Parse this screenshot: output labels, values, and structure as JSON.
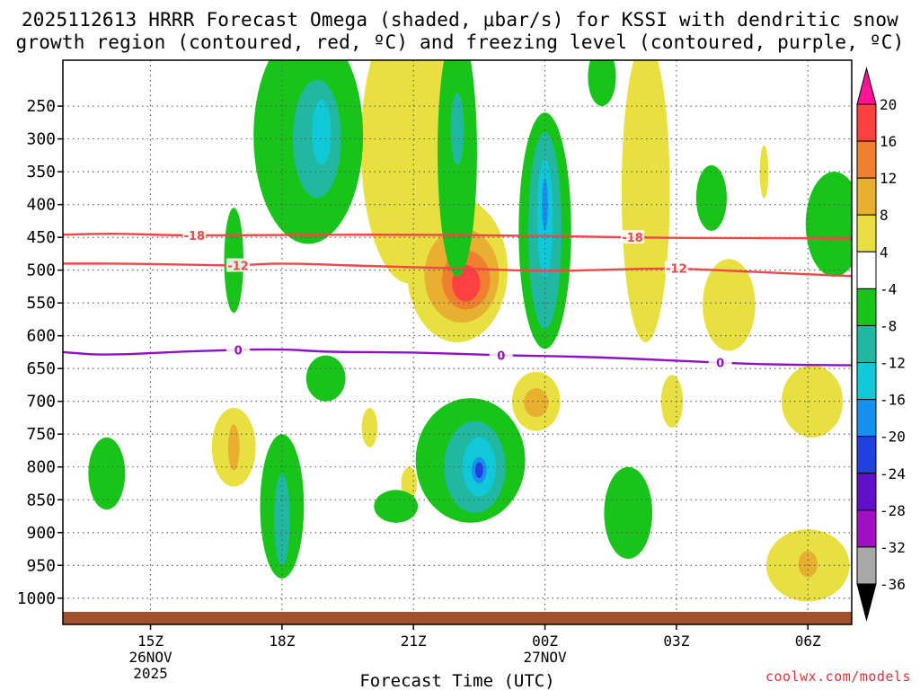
{
  "chart_data": {
    "type": "heatmap",
    "title_line1": "2025112613 HRRR Forecast Omega (shaded, μbar/s) for KSSI with dendritic snow",
    "title_line2": "growth region (contoured, red, ºC) and freezing level (contoured, purple, ºC)",
    "xlabel": "Forecast Time (UTC)",
    "ylabel": "",
    "x_range_hours": [
      13,
      31
    ],
    "y_range_mb": [
      180,
      1040
    ],
    "x_ticks": [
      {
        "hour": 15,
        "label": "15Z",
        "sub1": "26NOV",
        "sub2": "2025"
      },
      {
        "hour": 18,
        "label": "18Z",
        "sub1": "",
        "sub2": ""
      },
      {
        "hour": 21,
        "label": "21Z",
        "sub1": "",
        "sub2": ""
      },
      {
        "hour": 24,
        "label": "00Z",
        "sub1": "27NOV",
        "sub2": ""
      },
      {
        "hour": 27,
        "label": "03Z",
        "sub1": "",
        "sub2": ""
      },
      {
        "hour": 30,
        "label": "06Z",
        "sub1": "",
        "sub2": ""
      }
    ],
    "y_ticks": [
      250,
      300,
      350,
      400,
      450,
      500,
      550,
      600,
      650,
      700,
      750,
      800,
      850,
      900,
      950,
      1000
    ],
    "colorbar": {
      "levels": [
        "20",
        "16",
        "12",
        "8",
        "4",
        "-4",
        "-8",
        "-12",
        "-16",
        "-20",
        "-24",
        "-28",
        "-32",
        "-36"
      ],
      "colors": [
        "#ff1493",
        "#ff4040",
        "#f08030",
        "#e8b030",
        "#e8e040",
        "#ffffff",
        "#19c41a",
        "#20b8a0",
        "#10c8d8",
        "#1890f0",
        "#2040e0",
        "#6010c8",
        "#a010c0",
        "#a8a8a8",
        "#000000"
      ]
    },
    "contours": [
      {
        "name": "dgz-minus18",
        "label": "-18",
        "color": "#f04848",
        "points": [
          [
            13,
            446
          ],
          [
            14.2,
            444
          ],
          [
            15.5,
            447
          ],
          [
            17,
            447
          ],
          [
            19,
            446
          ],
          [
            21,
            446
          ],
          [
            23,
            447
          ],
          [
            25,
            449
          ],
          [
            27,
            451
          ],
          [
            29,
            451
          ],
          [
            31,
            452
          ]
        ]
      },
      {
        "name": "dgz-minus12",
        "label": "-12",
        "color": "#f04848",
        "points": [
          [
            13,
            490
          ],
          [
            14.5,
            490
          ],
          [
            16,
            492
          ],
          [
            17,
            493
          ],
          [
            18,
            489
          ],
          [
            20,
            494
          ],
          [
            22,
            497
          ],
          [
            24,
            502
          ],
          [
            25.5,
            499
          ],
          [
            27,
            497
          ],
          [
            28.5,
            502
          ],
          [
            31,
            509
          ]
        ]
      },
      {
        "name": "freezing-level",
        "label": "0",
        "color": "#9010c8",
        "points": [
          [
            13,
            625
          ],
          [
            14,
            630
          ],
          [
            16,
            623
          ],
          [
            18,
            620
          ],
          [
            19,
            625
          ],
          [
            21,
            625
          ],
          [
            23,
            630
          ],
          [
            25,
            632
          ],
          [
            27,
            638
          ],
          [
            29,
            644
          ],
          [
            31,
            645
          ]
        ]
      }
    ],
    "shaded_regions": [
      {
        "name": "yellow-upper-a",
        "level": "4",
        "hour": 20.9,
        "mb": 310,
        "half_width_hours": 1.1,
        "half_height_mb": 210
      },
      {
        "name": "yellow-upper-b",
        "level": "4",
        "hour": 26.3,
        "mb": 380,
        "half_width_hours": 0.55,
        "half_height_mb": 230
      },
      {
        "name": "yellow-dgz-core",
        "level": "4",
        "hour": 22.0,
        "mb": 500,
        "half_width_hours": 1.15,
        "half_height_mb": 110
      },
      {
        "name": "orange-dgz",
        "level": "8",
        "hour": 22.1,
        "mb": 508,
        "half_width_hours": 0.85,
        "half_height_mb": 72
      },
      {
        "name": "red-dgz",
        "level": "12",
        "hour": 22.2,
        "mb": 515,
        "half_width_hours": 0.55,
        "half_height_mb": 45
      },
      {
        "name": "pink-dgz",
        "level": "16",
        "hour": 22.2,
        "mb": 520,
        "half_width_hours": 0.32,
        "half_height_mb": 28
      },
      {
        "name": "yellow-02z-mid",
        "level": "4",
        "hour": 28.2,
        "mb": 553,
        "half_width_hours": 0.6,
        "half_height_mb": 70
      },
      {
        "name": "yellow-23z-low",
        "level": "4",
        "hour": 23.8,
        "mb": 700,
        "half_width_hours": 0.55,
        "half_height_mb": 45
      },
      {
        "name": "orange-23z-low",
        "level": "8",
        "hour": 23.8,
        "mb": 702,
        "half_width_hours": 0.28,
        "half_height_mb": 22
      },
      {
        "name": "yellow-17z",
        "level": "4",
        "hour": 16.9,
        "mb": 770,
        "half_width_hours": 0.5,
        "half_height_mb": 60
      },
      {
        "name": "orange-17z",
        "level": "8",
        "hour": 16.9,
        "mb": 770,
        "half_width_hours": 0.13,
        "half_height_mb": 35
      },
      {
        "name": "yellow-0530z",
        "level": "4",
        "hour": 30.1,
        "mb": 700,
        "half_width_hours": 0.7,
        "half_height_mb": 55
      },
      {
        "name": "yellow-06z-low",
        "level": "4",
        "hour": 30.0,
        "mb": 950,
        "half_width_hours": 0.95,
        "half_height_mb": 55
      },
      {
        "name": "orange-06z-low",
        "level": "8",
        "hour": 30.0,
        "mb": 948,
        "half_width_hours": 0.22,
        "half_height_mb": 20
      },
      {
        "name": "yellow-0330z",
        "level": "4",
        "hour": 26.9,
        "mb": 700,
        "half_width_hours": 0.25,
        "half_height_mb": 40
      },
      {
        "name": "yellow-20z-spot",
        "level": "4",
        "hour": 20.0,
        "mb": 740,
        "half_width_hours": 0.18,
        "half_height_mb": 30
      },
      {
        "name": "yellow-2130z-spot",
        "level": "4",
        "hour": 20.9,
        "mb": 825,
        "half_width_hours": 0.18,
        "half_height_mb": 25
      },
      {
        "name": "yellow-0430z-spot",
        "level": "4",
        "hour": 29.0,
        "mb": 350,
        "half_width_hours": 0.1,
        "half_height_mb": 40
      },
      {
        "name": "green-1830z-upper",
        "level": "-4",
        "hour": 18.6,
        "mb": 295,
        "half_width_hours": 1.25,
        "half_height_mb": 165
      },
      {
        "name": "teal-1830z-upper",
        "level": "-8",
        "hour": 18.8,
        "mb": 300,
        "half_width_hours": 0.55,
        "half_height_mb": 90
      },
      {
        "name": "cyan-1830z-upper",
        "level": "-12",
        "hour": 18.9,
        "mb": 290,
        "half_width_hours": 0.22,
        "half_height_mb": 50
      },
      {
        "name": "green-2230z-upper",
        "level": "-4",
        "hour": 22.0,
        "mb": 320,
        "half_width_hours": 0.45,
        "half_height_mb": 190
      },
      {
        "name": "teal-2230z-upper",
        "level": "-8",
        "hour": 22.0,
        "mb": 285,
        "half_width_hours": 0.15,
        "half_height_mb": 55
      },
      {
        "name": "green-00z-col",
        "level": "-4",
        "hour": 24.0,
        "mb": 440,
        "half_width_hours": 0.6,
        "half_height_mb": 180
      },
      {
        "name": "teal-00z-col",
        "level": "-8",
        "hour": 24.0,
        "mb": 440,
        "half_width_hours": 0.38,
        "half_height_mb": 150
      },
      {
        "name": "cyan-00z-col",
        "level": "-12",
        "hour": 24.0,
        "mb": 420,
        "half_width_hours": 0.18,
        "half_height_mb": 90
      },
      {
        "name": "blue-00z-col",
        "level": "-16",
        "hour": 24.0,
        "mb": 400,
        "half_width_hours": 0.07,
        "half_height_mb": 40
      },
      {
        "name": "green-17z-strip",
        "level": "-4",
        "hour": 16.9,
        "mb": 485,
        "half_width_hours": 0.22,
        "half_height_mb": 80
      },
      {
        "name": "green-19z-blob",
        "level": "-4",
        "hour": 19.0,
        "mb": 665,
        "half_width_hours": 0.45,
        "half_height_mb": 35
      },
      {
        "name": "green-2230z-low",
        "level": "-4",
        "hour": 22.3,
        "mb": 790,
        "half_width_hours": 1.25,
        "half_height_mb": 95
      },
      {
        "name": "teal-2230z-low",
        "level": "-8",
        "hour": 22.4,
        "mb": 800,
        "half_width_hours": 0.7,
        "half_height_mb": 70
      },
      {
        "name": "cyan-2230z-low",
        "level": "-12",
        "hour": 22.5,
        "mb": 800,
        "half_width_hours": 0.38,
        "half_height_mb": 45
      },
      {
        "name": "blue-2230z-low",
        "level": "-16",
        "hour": 22.5,
        "mb": 805,
        "half_width_hours": 0.17,
        "half_height_mb": 20
      },
      {
        "name": "darkblue-2230z-low",
        "level": "-20",
        "hour": 22.5,
        "mb": 805,
        "half_width_hours": 0.09,
        "half_height_mb": 12
      },
      {
        "name": "green-2030z-low",
        "level": "-4",
        "hour": 20.6,
        "mb": 860,
        "half_width_hours": 0.5,
        "half_height_mb": 25
      },
      {
        "name": "green-1830z-low",
        "level": "-4",
        "hour": 18.0,
        "mb": 860,
        "half_width_hours": 0.5,
        "half_height_mb": 110
      },
      {
        "name": "teal-1830z-low",
        "level": "-8",
        "hour": 18.0,
        "mb": 880,
        "half_width_hours": 0.18,
        "half_height_mb": 70
      },
      {
        "name": "green-1430z",
        "level": "-4",
        "hour": 14.0,
        "mb": 810,
        "half_width_hours": 0.42,
        "half_height_mb": 55
      },
      {
        "name": "green-02z-upper",
        "level": "-4",
        "hour": 25.3,
        "mb": 205,
        "half_width_hours": 0.32,
        "half_height_mb": 45
      },
      {
        "name": "green-02z-mid",
        "level": "-4",
        "hour": 27.8,
        "mb": 390,
        "half_width_hours": 0.35,
        "half_height_mb": 50
      },
      {
        "name": "green-06z-mid",
        "level": "-4",
        "hour": 30.6,
        "mb": 430,
        "half_width_hours": 0.65,
        "half_height_mb": 80
      },
      {
        "name": "green-0230z-low",
        "level": "-4",
        "hour": 25.9,
        "mb": 870,
        "half_width_hours": 0.55,
        "half_height_mb": 70
      }
    ]
  },
  "xlabel_text": "Forecast Time (UTC)",
  "credit": "coolwx.com/models"
}
